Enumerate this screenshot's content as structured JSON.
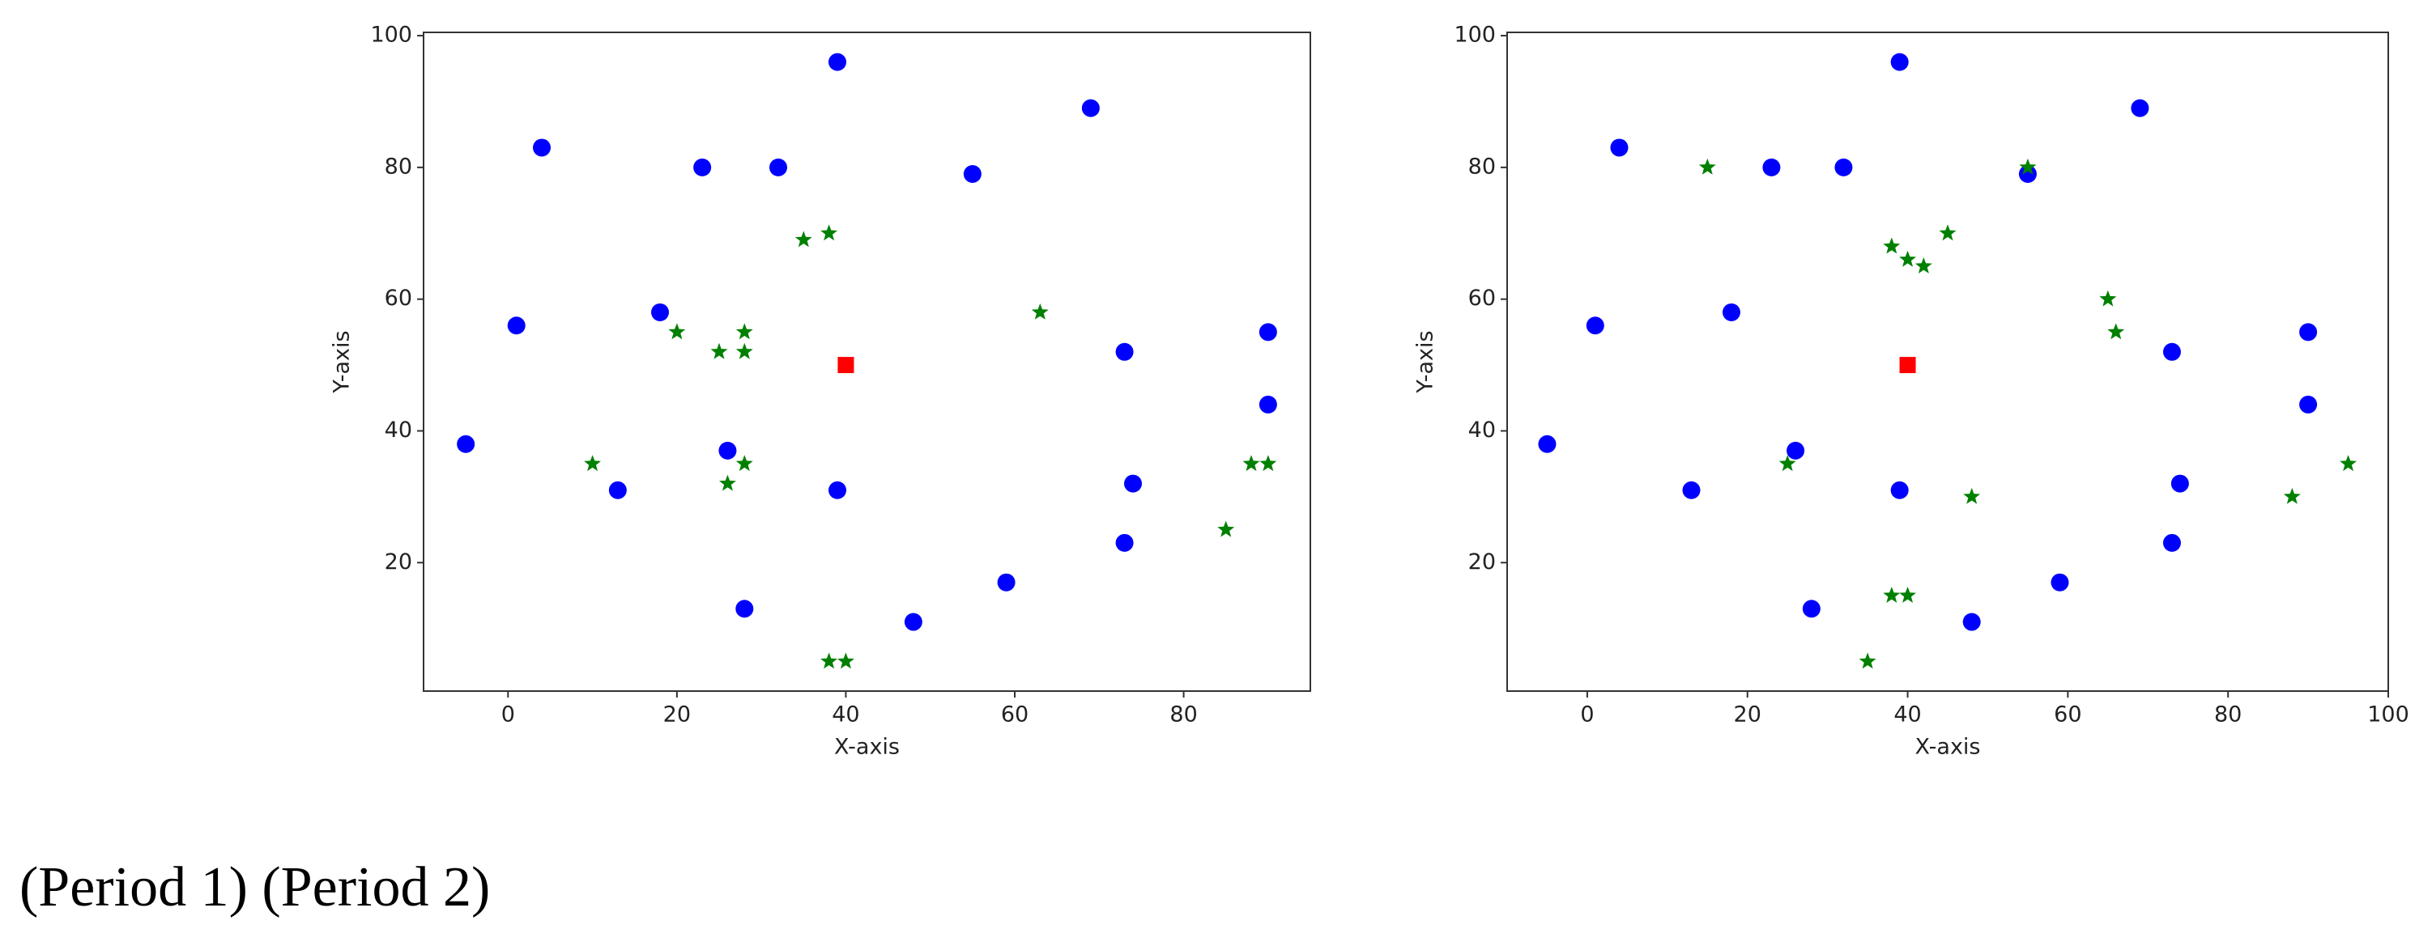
{
  "chart_data": [
    {
      "type": "scatter",
      "x_label": "X-axis",
      "y_label": "Y-axis",
      "xlim": [
        -10,
        95
      ],
      "ylim": [
        0.5,
        100.5
      ],
      "xticks": [
        0,
        20,
        40,
        60,
        80
      ],
      "yticks": [
        20,
        40,
        60,
        80,
        100
      ],
      "series": [
        {
          "color": "#0000ff",
          "marker": "circle",
          "x": [
            -5,
            1,
            4,
            13,
            18,
            23,
            26,
            28,
            32,
            39,
            39,
            48,
            55,
            59,
            69,
            73,
            73,
            74,
            90,
            90
          ],
          "values": [
            38,
            56,
            83,
            31,
            58,
            80,
            37,
            13,
            80,
            96,
            31,
            11,
            79,
            17,
            89,
            52,
            23,
            32,
            55,
            44
          ]
        },
        {
          "color": "#008000",
          "marker": "star",
          "x": [
            10,
            20,
            25,
            28,
            28,
            26,
            28,
            35,
            38,
            63,
            38,
            40,
            85,
            88,
            90
          ],
          "values": [
            35,
            55,
            52,
            55,
            52,
            32,
            35,
            69,
            70,
            58,
            5,
            5,
            25,
            35,
            35
          ]
        },
        {
          "color": "#ff0000",
          "marker": "square",
          "x": [
            40
          ],
          "values": [
            50
          ]
        }
      ]
    },
    {
      "type": "scatter",
      "x_label": "X-axis",
      "y_label": "Y-axis",
      "xlim": [
        -10,
        100
      ],
      "ylim": [
        0.5,
        100.5
      ],
      "xticks": [
        0,
        20,
        40,
        60,
        80,
        100
      ],
      "yticks": [
        20,
        40,
        60,
        80,
        100
      ],
      "series": [
        {
          "color": "#0000ff",
          "marker": "circle",
          "x": [
            -5,
            1,
            4,
            13,
            18,
            23,
            26,
            28,
            32,
            39,
            39,
            48,
            55,
            59,
            69,
            73,
            73,
            74,
            90,
            90
          ],
          "values": [
            38,
            56,
            83,
            31,
            58,
            80,
            37,
            13,
            80,
            96,
            31,
            11,
            79,
            17,
            89,
            52,
            23,
            32,
            55,
            44
          ]
        },
        {
          "color": "#008000",
          "marker": "star",
          "x": [
            15,
            55,
            38,
            40,
            42,
            45,
            65,
            66,
            25,
            48,
            38,
            40,
            35,
            88,
            95
          ],
          "values": [
            80,
            80,
            68,
            66,
            65,
            70,
            60,
            55,
            35,
            30,
            15,
            15,
            5,
            30,
            35
          ]
        },
        {
          "color": "#ff0000",
          "marker": "square",
          "x": [
            40
          ],
          "values": [
            50
          ]
        }
      ]
    }
  ],
  "caption": "(Period 1) (Period 2)"
}
